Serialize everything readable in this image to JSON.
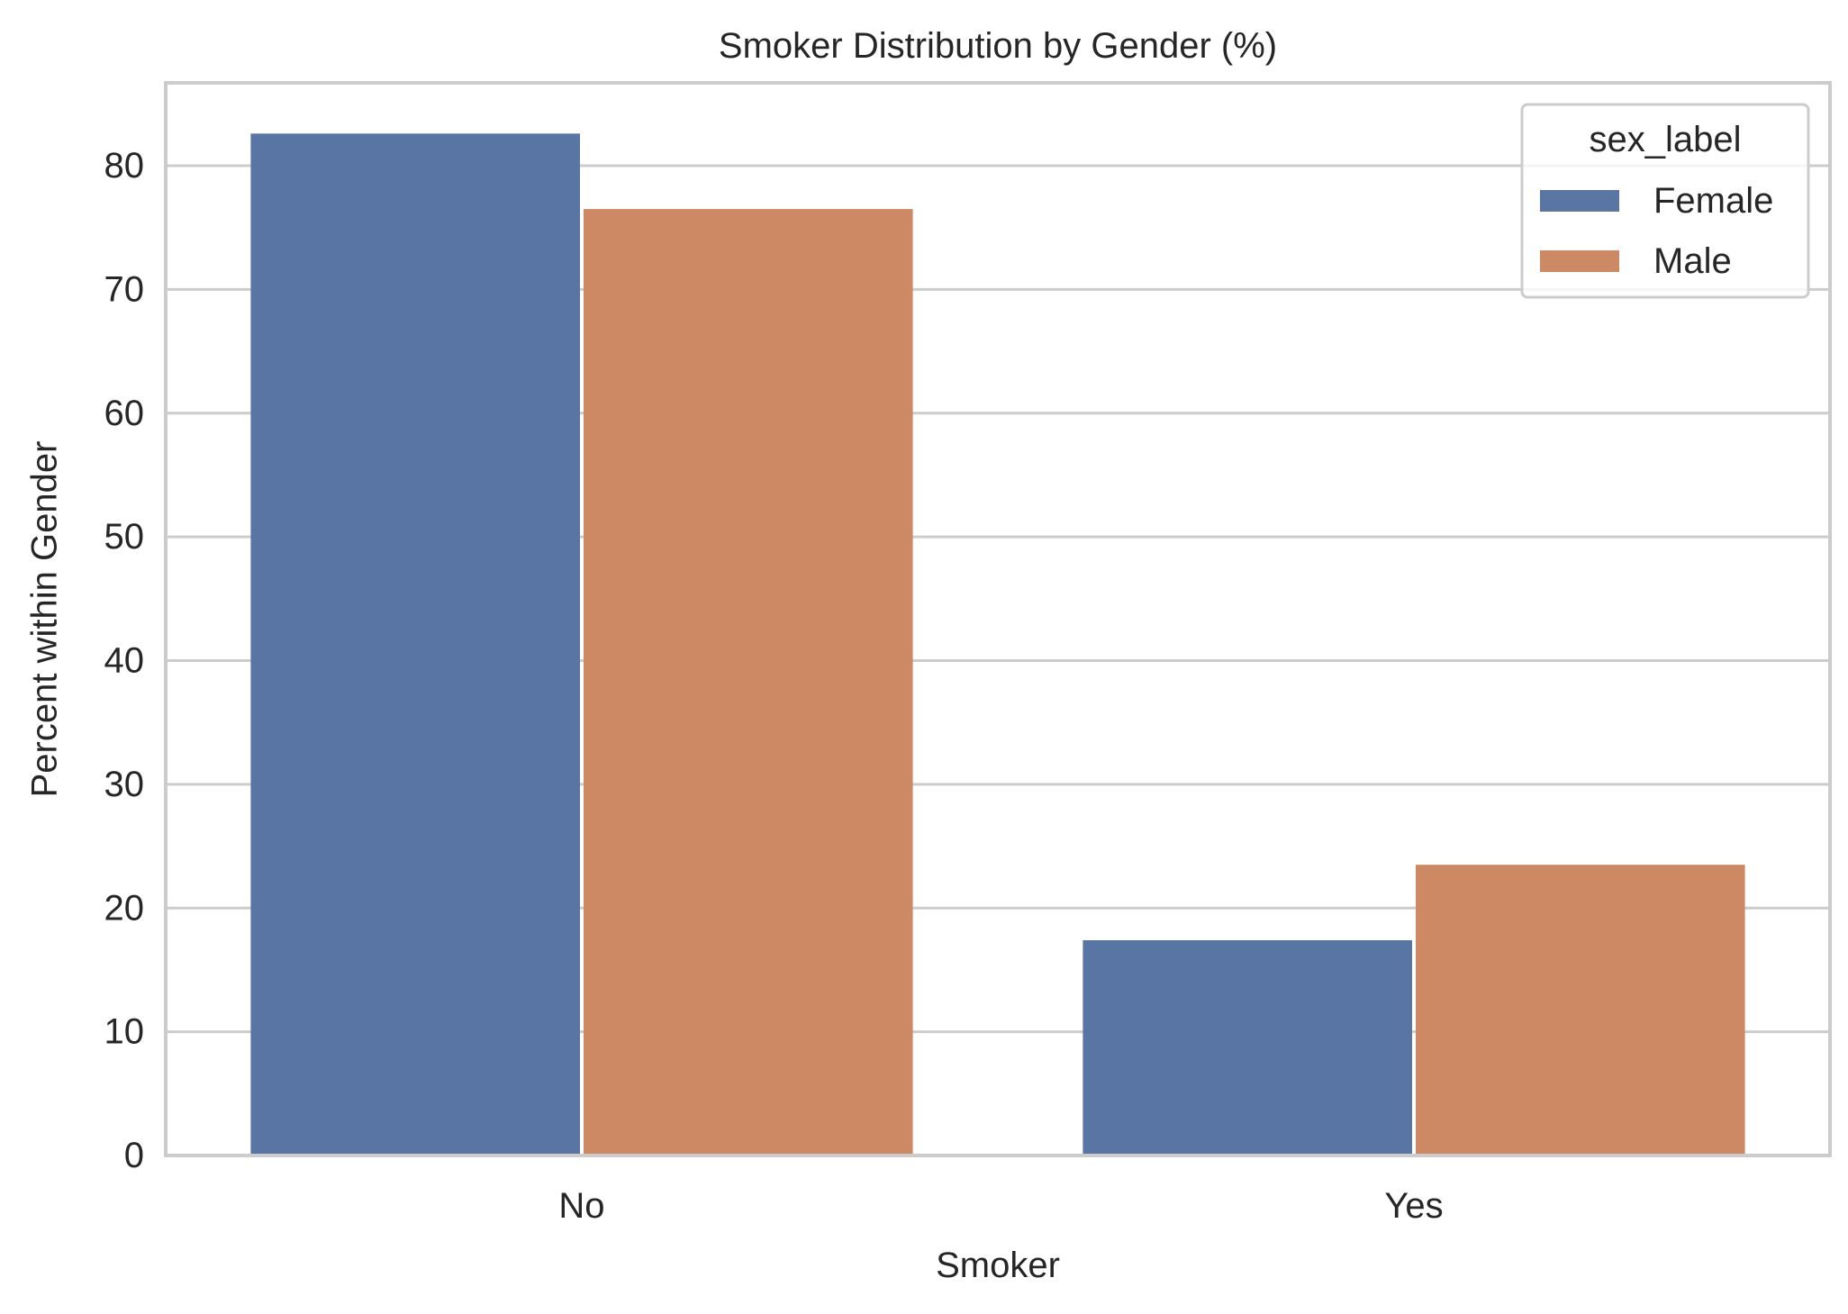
{
  "chart_data": {
    "type": "bar",
    "title": "Smoker Distribution by Gender (%)",
    "xlabel": "Smoker",
    "ylabel": "Percent within Gender",
    "categories": [
      "No",
      "Yes"
    ],
    "series": [
      {
        "name": "Female",
        "values": [
          82.6,
          17.4
        ]
      },
      {
        "name": "Male",
        "values": [
          76.5,
          23.5
        ]
      }
    ],
    "ylim": [
      0,
      86.7
    ],
    "yticks": [
      0,
      10,
      20,
      30,
      40,
      50,
      60,
      70,
      80
    ],
    "grid": true,
    "legend": {
      "title": "sex_label",
      "placement": "top-right"
    },
    "colors": {
      "Female": "#5975a4",
      "Male": "#cc8963",
      "grid": "#cccccc",
      "frame": "#cccccc",
      "text": "#262626"
    }
  }
}
